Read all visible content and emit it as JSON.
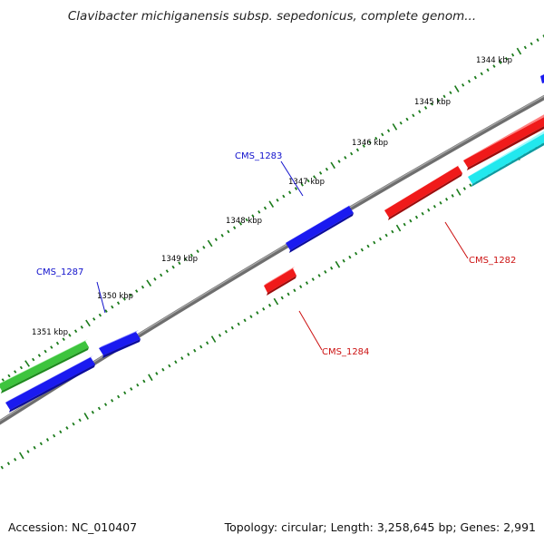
{
  "title": "Clavibacter michiganensis subsp. sepedonicus, complete genom...",
  "footer": {
    "accession": "Accession: NC_010407",
    "summary": "Topology: circular; Length: 3,258,645 bp; Genes: 2,991"
  },
  "colors": {
    "backbone": "#808080",
    "tick": "#1a7a1a",
    "label_blue": "#1111cc",
    "label_red": "#cc1111",
    "feature_blue": "#1a1af0",
    "feature_red": "#f01a1a",
    "feature_green": "#3ec43e",
    "feature_cyan": "#22e8ee"
  },
  "ruler": {
    "labels": [
      "1344 kbp",
      "1345 kbp",
      "1346 kbp",
      "1347 kbp",
      "1348 kbp",
      "1349 kbp",
      "1350 kbp",
      "1351 kbp"
    ]
  },
  "gene_labels": [
    {
      "text": "CMS_1283",
      "color": "label_blue"
    },
    {
      "text": "CMS_1287",
      "color": "label_blue"
    },
    {
      "text": "CMS_1282",
      "color": "label_red"
    },
    {
      "text": "CMS_1284",
      "color": "label_red"
    }
  ],
  "features": [
    {
      "kind": "blue"
    },
    {
      "kind": "blue"
    },
    {
      "kind": "blue"
    },
    {
      "kind": "blue"
    },
    {
      "kind": "green"
    },
    {
      "kind": "red"
    },
    {
      "kind": "red"
    },
    {
      "kind": "red"
    },
    {
      "kind": "cyan"
    }
  ]
}
